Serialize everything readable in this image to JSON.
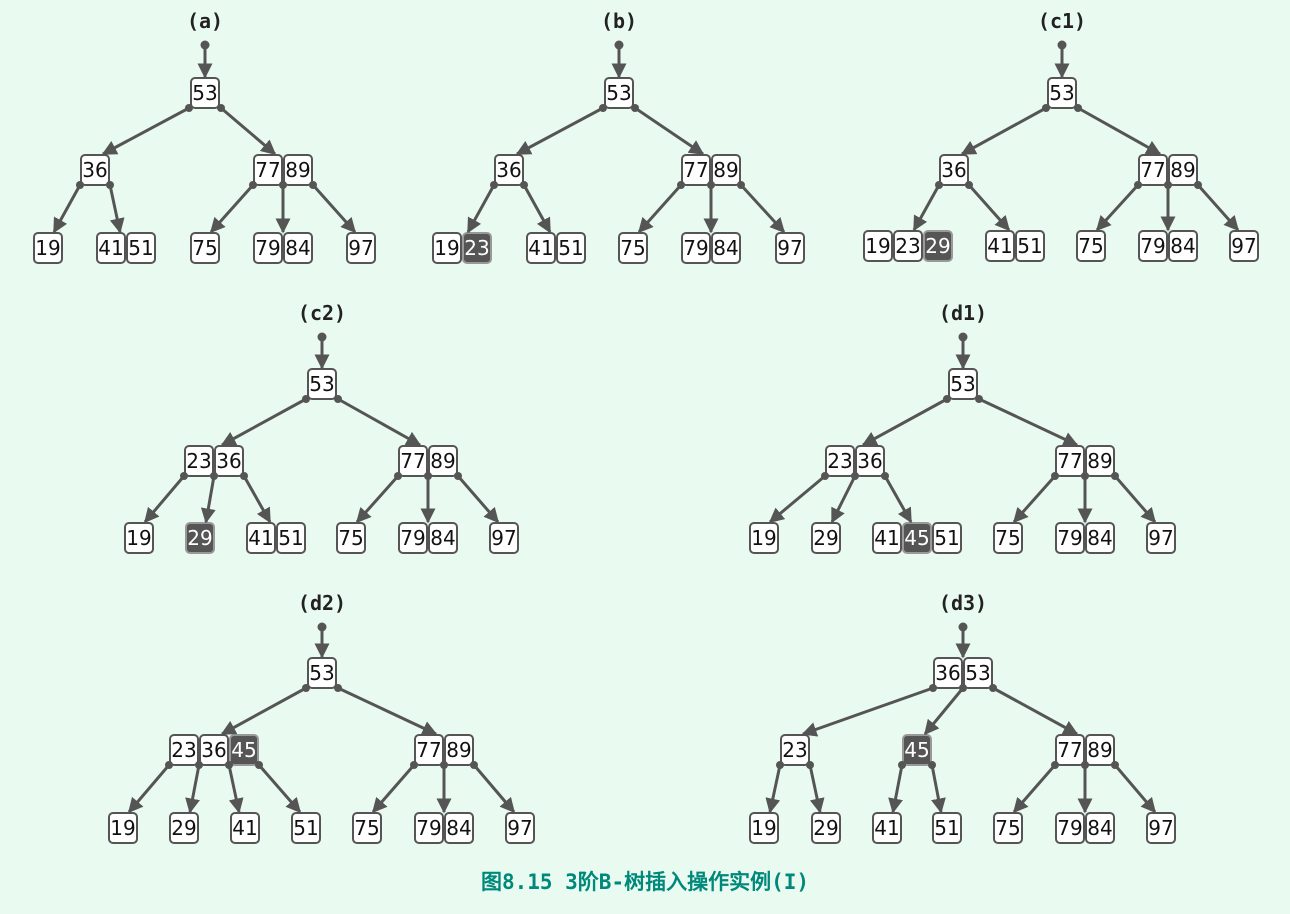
{
  "caption": "图8.15 3阶B-树插入操作实例(I)",
  "colors": {
    "background": "#e9fbf0",
    "node_border": "#555555",
    "highlight_fill": "#555555",
    "caption": "#00897b"
  },
  "panels": [
    {
      "label": "(a)",
      "root": {
        "keys": [
          "53"
        ],
        "children": [
          {
            "keys": [
              "36"
            ],
            "children": [
              {
                "keys": [
                  "19"
                ]
              },
              {
                "keys": [
                  "41",
                  "51"
                ]
              }
            ]
          },
          {
            "keys": [
              "77",
              "89"
            ],
            "children": [
              {
                "keys": [
                  "75"
                ]
              },
              {
                "keys": [
                  "79",
                  "84"
                ]
              },
              {
                "keys": [
                  "97"
                ]
              }
            ]
          }
        ]
      }
    },
    {
      "label": "(b)",
      "root": {
        "keys": [
          "53"
        ],
        "children": [
          {
            "keys": [
              "36"
            ],
            "children": [
              {
                "keys": [
                  "19",
                  "23"
                ],
                "highlight": [
                  1
                ]
              },
              {
                "keys": [
                  "41",
                  "51"
                ]
              }
            ]
          },
          {
            "keys": [
              "77",
              "89"
            ],
            "children": [
              {
                "keys": [
                  "75"
                ]
              },
              {
                "keys": [
                  "79",
                  "84"
                ]
              },
              {
                "keys": [
                  "97"
                ]
              }
            ]
          }
        ]
      }
    },
    {
      "label": "(c1)",
      "root": {
        "keys": [
          "53"
        ],
        "children": [
          {
            "keys": [
              "36"
            ],
            "children": [
              {
                "keys": [
                  "19",
                  "23",
                  "29"
                ],
                "highlight": [
                  2
                ]
              },
              {
                "keys": [
                  "41",
                  "51"
                ]
              }
            ]
          },
          {
            "keys": [
              "77",
              "89"
            ],
            "children": [
              {
                "keys": [
                  "75"
                ]
              },
              {
                "keys": [
                  "79",
                  "84"
                ]
              },
              {
                "keys": [
                  "97"
                ]
              }
            ]
          }
        ]
      }
    },
    {
      "label": "(c2)",
      "root": {
        "keys": [
          "53"
        ],
        "children": [
          {
            "keys": [
              "23",
              "36"
            ],
            "children": [
              {
                "keys": [
                  "19"
                ]
              },
              {
                "keys": [
                  "29"
                ],
                "highlight": [
                  0
                ]
              },
              {
                "keys": [
                  "41",
                  "51"
                ]
              }
            ]
          },
          {
            "keys": [
              "77",
              "89"
            ],
            "children": [
              {
                "keys": [
                  "75"
                ]
              },
              {
                "keys": [
                  "79",
                  "84"
                ]
              },
              {
                "keys": [
                  "97"
                ]
              }
            ]
          }
        ]
      }
    },
    {
      "label": "(d1)",
      "root": {
        "keys": [
          "53"
        ],
        "children": [
          {
            "keys": [
              "23",
              "36"
            ],
            "children": [
              {
                "keys": [
                  "19"
                ]
              },
              {
                "keys": [
                  "29"
                ]
              },
              {
                "keys": [
                  "41",
                  "45",
                  "51"
                ],
                "highlight": [
                  1
                ]
              }
            ]
          },
          {
            "keys": [
              "77",
              "89"
            ],
            "children": [
              {
                "keys": [
                  "75"
                ]
              },
              {
                "keys": [
                  "79",
                  "84"
                ]
              },
              {
                "keys": [
                  "97"
                ]
              }
            ]
          }
        ]
      }
    },
    {
      "label": "(d2)",
      "root": {
        "keys": [
          "53"
        ],
        "children": [
          {
            "keys": [
              "23",
              "36",
              "45"
            ],
            "highlight": [
              2
            ],
            "children": [
              {
                "keys": [
                  "19"
                ]
              },
              {
                "keys": [
                  "29"
                ]
              },
              {
                "keys": [
                  "41"
                ]
              },
              {
                "keys": [
                  "51"
                ]
              }
            ]
          },
          {
            "keys": [
              "77",
              "89"
            ],
            "children": [
              {
                "keys": [
                  "75"
                ]
              },
              {
                "keys": [
                  "79",
                  "84"
                ]
              },
              {
                "keys": [
                  "97"
                ]
              }
            ]
          }
        ]
      }
    },
    {
      "label": "(d3)",
      "root": {
        "keys": [
          "36",
          "53"
        ],
        "children": [
          {
            "keys": [
              "23"
            ],
            "children": [
              {
                "keys": [
                  "19"
                ]
              },
              {
                "keys": [
                  "29"
                ]
              }
            ]
          },
          {
            "keys": [
              "45"
            ],
            "highlight": [
              0
            ],
            "children": [
              {
                "keys": [
                  "41"
                ]
              },
              {
                "keys": [
                  "51"
                ]
              }
            ]
          },
          {
            "keys": [
              "77",
              "89"
            ],
            "children": [
              {
                "keys": [
                  "75"
                ]
              },
              {
                "keys": [
                  "79",
                  "84"
                ]
              },
              {
                "keys": [
                  "97"
                ]
              }
            ]
          }
        ]
      }
    }
  ]
}
